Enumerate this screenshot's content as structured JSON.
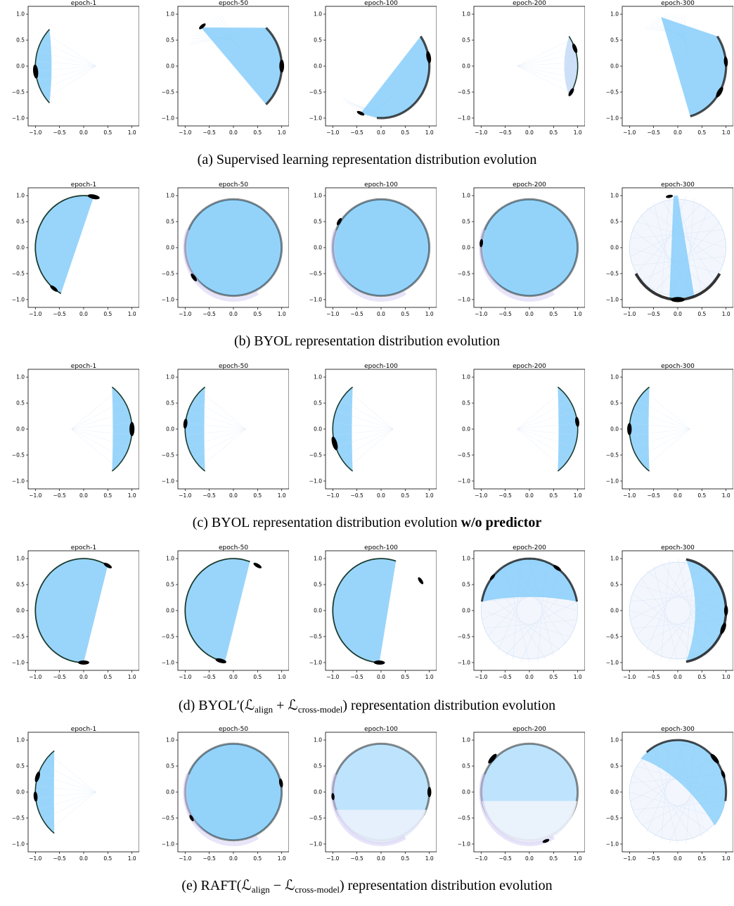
{
  "figure": {
    "rows": [
      {
        "caption_prefix": "(a) Supervised learning representation distribution evolution",
        "caption_bold": "",
        "caption_suffix": "",
        "panels": [
          {
            "title": "epoch-1",
            "pattern": "crescent",
            "center_deg": 180,
            "span_deg": 90,
            "clusters": [
              {
                "angle_deg": 186,
                "size": 1.0
              }
            ]
          },
          {
            "title": "epoch-50",
            "pattern": "wedge",
            "arc_center_deg": 0,
            "arc_span_deg": 95,
            "apex_deg": 132,
            "clusters": [
              {
                "angle_deg": 0,
                "size": 0.9
              },
              {
                "angle_deg": 130,
                "size": 0.4
              }
            ]
          },
          {
            "title": "epoch-100",
            "pattern": "wedge",
            "arc_center_deg": 330,
            "arc_span_deg": 130,
            "apex_deg": 245,
            "clusters": [
              {
                "angle_deg": 10,
                "size": 0.8
              },
              {
                "angle_deg": 245,
                "size": 0.4
              }
            ]
          },
          {
            "title": "epoch-200",
            "pattern": "crescent-faint",
            "center_deg": 0,
            "span_deg": 70,
            "clusters": [
              {
                "angle_deg": 20,
                "size": 0.6
              },
              {
                "angle_deg": 330,
                "size": 0.5
              }
            ]
          },
          {
            "title": "epoch-300",
            "pattern": "wedge",
            "arc_center_deg": 340,
            "arc_span_deg": 110,
            "apex_deg": 110,
            "clusters": [
              {
                "angle_deg": 5,
                "size": 0.6
              },
              {
                "angle_deg": 330,
                "size": 0.8
              }
            ]
          }
        ]
      },
      {
        "caption_prefix": "(b) BYOL representation distribution evolution",
        "caption_bold": "",
        "caption_suffix": "",
        "panels": [
          {
            "title": "epoch-1",
            "pattern": "half-chord",
            "from_deg": 78,
            "to_deg": 242,
            "clusters": [
              {
                "angle_deg": 78,
                "size": 0.8
              },
              {
                "angle_deg": 232,
                "size": 0.5
              }
            ]
          },
          {
            "title": "epoch-50",
            "pattern": "full-disc",
            "clusters": [
              {
                "angle_deg": 215,
                "size": 0.5
              }
            ]
          },
          {
            "title": "epoch-100",
            "pattern": "full-disc",
            "clusters": [
              {
                "angle_deg": 150,
                "size": 0.4
              }
            ]
          },
          {
            "title": "epoch-200",
            "pattern": "full-disc",
            "clusters": [
              {
                "angle_deg": 175,
                "size": 0.4
              }
            ]
          },
          {
            "title": "epoch-300",
            "pattern": "ring-faint",
            "clusters": [
              {
                "angle_deg": 270,
                "size": 1.0
              },
              {
                "angle_deg": 100,
                "size": 0.3
              }
            ]
          }
        ]
      },
      {
        "caption_prefix": "(c) BYOL representation distribution evolution ",
        "caption_bold": "w/o predictor",
        "caption_suffix": "",
        "panels": [
          {
            "title": "epoch-1",
            "pattern": "crescent",
            "center_deg": 0,
            "span_deg": 108,
            "clusters": [
              {
                "angle_deg": 0,
                "size": 1.0
              }
            ]
          },
          {
            "title": "epoch-50",
            "pattern": "crescent",
            "center_deg": 180,
            "span_deg": 108,
            "clusters": [
              {
                "angle_deg": 174,
                "size": 0.6
              }
            ]
          },
          {
            "title": "epoch-100",
            "pattern": "crescent",
            "center_deg": 180,
            "span_deg": 108,
            "clusters": [
              {
                "angle_deg": 196,
                "size": 1.0
              }
            ]
          },
          {
            "title": "epoch-200",
            "pattern": "crescent",
            "center_deg": 0,
            "span_deg": 108,
            "clusters": [
              {
                "angle_deg": 8,
                "size": 0.6
              }
            ]
          },
          {
            "title": "epoch-300",
            "pattern": "crescent",
            "center_deg": 180,
            "span_deg": 108,
            "clusters": [
              {
                "angle_deg": 180,
                "size": 0.8
              }
            ]
          }
        ]
      },
      {
        "caption_prefix": "(d) BYOL′(ℒ",
        "caption_bold": "",
        "caption_suffix": "",
        "math": {
          "t1": "ℒ",
          "s1": "align",
          "op": " + ",
          "t2": "ℒ",
          "s2": "cross-model",
          "tail": ") representation distribution evolution",
          "head": "(d) BYOL′("
        },
        "panels": [
          {
            "title": "epoch-1",
            "pattern": "half-chord",
            "from_deg": 60,
            "to_deg": 270,
            "flip": true,
            "clusters": [
              {
                "angle_deg": 60,
                "size": 0.5
              },
              {
                "angle_deg": 270,
                "size": 0.7
              }
            ]
          },
          {
            "title": "epoch-50",
            "pattern": "half-chord",
            "from_deg": 70,
            "to_deg": 260,
            "flip": true,
            "clusters": [
              {
                "angle_deg": 60,
                "size": 0.5
              },
              {
                "angle_deg": 255,
                "size": 0.7
              }
            ]
          },
          {
            "title": "epoch-100",
            "pattern": "half-chord",
            "from_deg": 72,
            "to_deg": 268,
            "flip": true,
            "clusters": [
              {
                "angle_deg": 35,
                "size": 0.4
              },
              {
                "angle_deg": 268,
                "size": 0.7
              }
            ]
          },
          {
            "title": "epoch-200",
            "pattern": "cap-top",
            "clusters": [
              {
                "angle_deg": 55,
                "size": 0.5
              },
              {
                "angle_deg": 140,
                "size": 0.3
              }
            ]
          },
          {
            "title": "epoch-300",
            "pattern": "ring-faint-right",
            "clusters": [
              {
                "angle_deg": 0,
                "size": 0.6
              },
              {
                "angle_deg": 340,
                "size": 0.8
              }
            ]
          }
        ]
      },
      {
        "caption_prefix": "",
        "caption_bold": "",
        "caption_suffix": "",
        "math": {
          "t1": "ℒ",
          "s1": "align",
          "op": " − ",
          "t2": "ℒ",
          "s2": "cross-model",
          "tail": ") representation distribution evolution",
          "head": "(e) RAFT("
        },
        "panels": [
          {
            "title": "epoch-1",
            "pattern": "crescent",
            "center_deg": 180,
            "span_deg": 105,
            "clusters": [
              {
                "angle_deg": 163,
                "size": 0.7
              },
              {
                "angle_deg": 185,
                "size": 0.6
              }
            ]
          },
          {
            "title": "epoch-50",
            "pattern": "full-disc",
            "clusters": [
              {
                "angle_deg": 10,
                "size": 0.5
              },
              {
                "angle_deg": 210,
                "size": 0.3
              }
            ]
          },
          {
            "title": "epoch-100",
            "pattern": "full-disc-half",
            "clusters": [
              {
                "angle_deg": 0,
                "size": 0.6
              },
              {
                "angle_deg": 185,
                "size": 0.3
              }
            ]
          },
          {
            "title": "epoch-200",
            "pattern": "full-disc-top",
            "clusters": [
              {
                "angle_deg": 140,
                "size": 0.8
              },
              {
                "angle_deg": 290,
                "size": 0.3
              }
            ]
          },
          {
            "title": "epoch-300",
            "pattern": "ring-faint-top",
            "clusters": [
              {
                "angle_deg": 40,
                "size": 0.8
              },
              {
                "angle_deg": 20,
                "size": 0.4
              }
            ]
          }
        ]
      }
    ]
  },
  "axes": {
    "x_ticks": [
      "−1.0",
      "−0.5",
      "0.0",
      "0.5",
      "1.0"
    ],
    "y_ticks": [
      "1.0",
      "0.5",
      "0.0",
      "−0.5",
      "−1.0"
    ],
    "lim": [
      -1.15,
      1.15
    ]
  },
  "colors": {
    "fill": "#87cefa",
    "faint": "#c9ddf7",
    "edge": "#1b3b2e",
    "cluster": "#000000",
    "frame": "#000000"
  }
}
